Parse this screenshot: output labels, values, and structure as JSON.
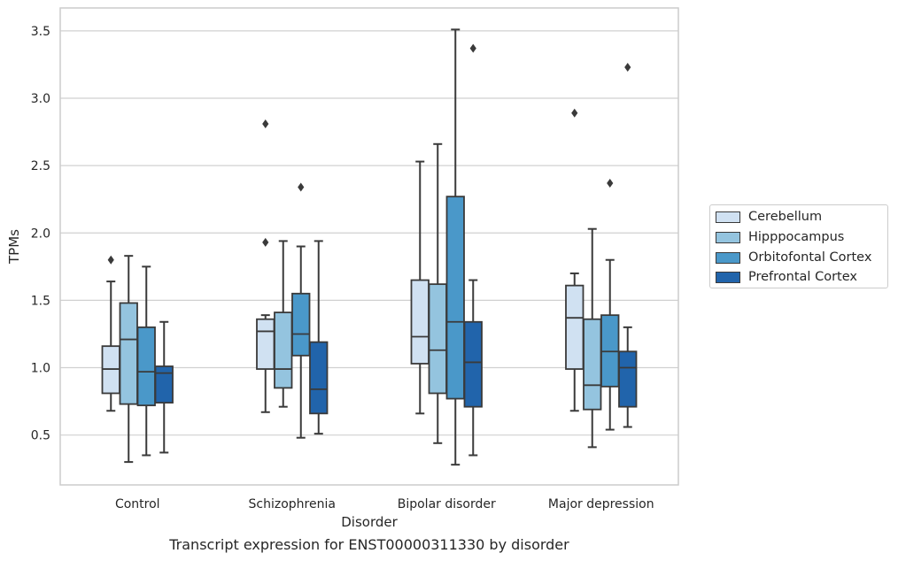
{
  "chart_data": {
    "type": "box",
    "title": "Transcript expression for ENST00000311330 by disorder",
    "xlabel": "Disorder",
    "ylabel": "TPMs",
    "categories": [
      "Control",
      "Schizophrenia",
      "Bipolar disorder",
      "Major depression"
    ],
    "ylim": [
      0.13,
      3.67
    ],
    "yticks": [
      "0.5",
      "1.0",
      "1.5",
      "2.0",
      "2.5",
      "3.0",
      "3.5"
    ],
    "grid": "horizontal",
    "legend_position": "right",
    "series": [
      {
        "name": "Cerebellum",
        "color": "#d0e1f2",
        "boxes": [
          {
            "whisker_low": 0.68,
            "q1": 0.81,
            "median": 0.99,
            "q3": 1.16,
            "whisker_high": 1.64,
            "outliers": [
              1.8
            ]
          },
          {
            "whisker_low": 0.67,
            "q1": 0.99,
            "median": 1.27,
            "q3": 1.36,
            "whisker_high": 1.39,
            "outliers": [
              1.93,
              2.81
            ]
          },
          {
            "whisker_low": 0.66,
            "q1": 1.03,
            "median": 1.23,
            "q3": 1.65,
            "whisker_high": 2.53,
            "outliers": []
          },
          {
            "whisker_low": 0.68,
            "q1": 0.99,
            "median": 1.37,
            "q3": 1.61,
            "whisker_high": 1.7,
            "outliers": [
              2.89
            ]
          }
        ]
      },
      {
        "name": "Hipppocampus",
        "color": "#94c4df",
        "boxes": [
          {
            "whisker_low": 0.3,
            "q1": 0.73,
            "median": 1.21,
            "q3": 1.48,
            "whisker_high": 1.83,
            "outliers": []
          },
          {
            "whisker_low": 0.71,
            "q1": 0.85,
            "median": 0.99,
            "q3": 1.41,
            "whisker_high": 1.94,
            "outliers": []
          },
          {
            "whisker_low": 0.44,
            "q1": 0.81,
            "median": 1.13,
            "q3": 1.62,
            "whisker_high": 2.66,
            "outliers": []
          },
          {
            "whisker_low": 0.41,
            "q1": 0.69,
            "median": 0.87,
            "q3": 1.36,
            "whisker_high": 2.03,
            "outliers": []
          }
        ]
      },
      {
        "name": "Orbitofontal Cortex",
        "color": "#4a98c9",
        "boxes": [
          {
            "whisker_low": 0.35,
            "q1": 0.72,
            "median": 0.97,
            "q3": 1.3,
            "whisker_high": 1.75,
            "outliers": []
          },
          {
            "whisker_low": 0.48,
            "q1": 1.09,
            "median": 1.25,
            "q3": 1.55,
            "whisker_high": 1.9,
            "outliers": [
              2.34
            ]
          },
          {
            "whisker_low": 0.28,
            "q1": 0.77,
            "median": 1.34,
            "q3": 2.27,
            "whisker_high": 3.51,
            "outliers": []
          },
          {
            "whisker_low": 0.54,
            "q1": 0.86,
            "median": 1.12,
            "q3": 1.39,
            "whisker_high": 1.8,
            "outliers": [
              2.37
            ]
          }
        ]
      },
      {
        "name": "Prefrontal Cortex",
        "color": "#2164ab",
        "boxes": [
          {
            "whisker_low": 0.37,
            "q1": 0.74,
            "median": 0.96,
            "q3": 1.01,
            "whisker_high": 1.34,
            "outliers": []
          },
          {
            "whisker_low": 0.51,
            "q1": 0.66,
            "median": 0.84,
            "q3": 1.19,
            "whisker_high": 1.94,
            "outliers": []
          },
          {
            "whisker_low": 0.35,
            "q1": 0.71,
            "median": 1.04,
            "q3": 1.34,
            "whisker_high": 1.65,
            "outliers": [
              3.37
            ]
          },
          {
            "whisker_low": 0.56,
            "q1": 0.71,
            "median": 1.0,
            "q3": 1.12,
            "whisker_high": 1.3,
            "outliers": [
              3.23
            ]
          }
        ]
      }
    ]
  }
}
